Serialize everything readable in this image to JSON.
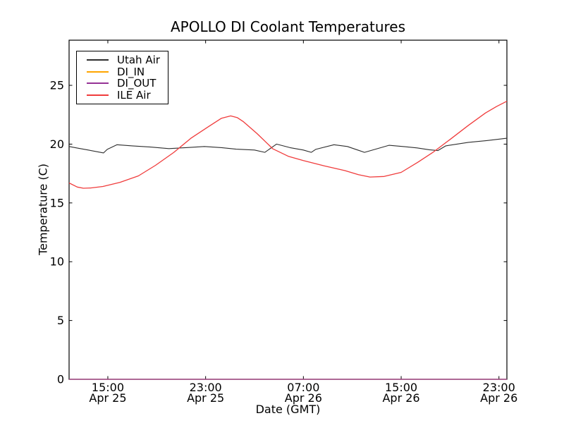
{
  "figure": {
    "background_color": "#ffffff",
    "frame_color": "#000000",
    "text_color": "#000000"
  },
  "chart_data": {
    "type": "line",
    "title": "APOLLO DI Coolant Temperatures",
    "xlabel": "Date (GMT)",
    "ylabel": "Temperature (C)",
    "xlim": [
      11.83,
      47.65
    ],
    "ylim": [
      0,
      28.84
    ],
    "grid": false,
    "legend_position": "upper left",
    "x_ticks": [
      {
        "x": 15,
        "time": "15:00",
        "date": "Apr 25"
      },
      {
        "x": 23,
        "time": "23:00",
        "date": "Apr 25"
      },
      {
        "x": 31,
        "time": "07:00",
        "date": "Apr 26"
      },
      {
        "x": 39,
        "time": "15:00",
        "date": "Apr 26"
      },
      {
        "x": 47,
        "time": "23:00",
        "date": "Apr 26"
      }
    ],
    "y_ticks": [
      0,
      5,
      10,
      15,
      20,
      25
    ],
    "series": [
      {
        "name": "Utah Air",
        "color": "#2e2e2e",
        "width": 1.1,
        "points": [
          [
            11.83,
            19.8
          ],
          [
            12.6,
            19.65
          ],
          [
            13.4,
            19.5
          ],
          [
            14.65,
            19.25
          ],
          [
            14.95,
            19.55
          ],
          [
            15.75,
            19.95
          ],
          [
            17.0,
            19.85
          ],
          [
            18.5,
            19.75
          ],
          [
            20.0,
            19.62
          ],
          [
            21.4,
            19.7
          ],
          [
            22.9,
            19.8
          ],
          [
            24.3,
            19.7
          ],
          [
            25.5,
            19.57
          ],
          [
            27.0,
            19.5
          ],
          [
            27.85,
            19.3
          ],
          [
            28.8,
            20.0
          ],
          [
            29.9,
            19.7
          ],
          [
            31.0,
            19.5
          ],
          [
            31.65,
            19.3
          ],
          [
            32.0,
            19.55
          ],
          [
            33.5,
            19.95
          ],
          [
            34.6,
            19.8
          ],
          [
            36.0,
            19.3
          ],
          [
            38.0,
            19.9
          ],
          [
            39.3,
            19.78
          ],
          [
            40.3,
            19.68
          ],
          [
            41.3,
            19.52
          ],
          [
            42.0,
            19.45
          ],
          [
            42.65,
            19.85
          ],
          [
            44.5,
            20.15
          ],
          [
            46.0,
            20.3
          ],
          [
            47.65,
            20.5
          ]
        ]
      },
      {
        "name": "DI_IN",
        "color": "#ffa500",
        "width": 1.3,
        "points": [
          [
            11.83,
            0
          ],
          [
            47.65,
            0
          ]
        ]
      },
      {
        "name": "DI_OUT",
        "color": "#953295",
        "width": 1.3,
        "points": [
          [
            11.83,
            0
          ],
          [
            47.65,
            0
          ]
        ]
      },
      {
        "name": "ILE Air",
        "color": "#f03c3c",
        "width": 1.3,
        "points": [
          [
            11.83,
            16.7
          ],
          [
            12.5,
            16.35
          ],
          [
            13.0,
            16.25
          ],
          [
            13.6,
            16.27
          ],
          [
            14.6,
            16.4
          ],
          [
            16.0,
            16.75
          ],
          [
            17.5,
            17.3
          ],
          [
            18.9,
            18.2
          ],
          [
            20.4,
            19.3
          ],
          [
            21.8,
            20.5
          ],
          [
            23.25,
            21.5
          ],
          [
            24.3,
            22.2
          ],
          [
            25.05,
            22.4
          ],
          [
            25.6,
            22.25
          ],
          [
            26.1,
            21.9
          ],
          [
            27.2,
            20.9
          ],
          [
            28.5,
            19.6
          ],
          [
            29.8,
            18.95
          ],
          [
            31.0,
            18.6
          ],
          [
            32.7,
            18.15
          ],
          [
            34.4,
            17.75
          ],
          [
            35.5,
            17.4
          ],
          [
            36.45,
            17.2
          ],
          [
            37.6,
            17.25
          ],
          [
            39.0,
            17.6
          ],
          [
            40.35,
            18.45
          ],
          [
            41.6,
            19.3
          ],
          [
            43.0,
            20.4
          ],
          [
            44.5,
            21.6
          ],
          [
            45.9,
            22.65
          ],
          [
            46.8,
            23.2
          ],
          [
            47.65,
            23.65
          ]
        ]
      }
    ]
  }
}
